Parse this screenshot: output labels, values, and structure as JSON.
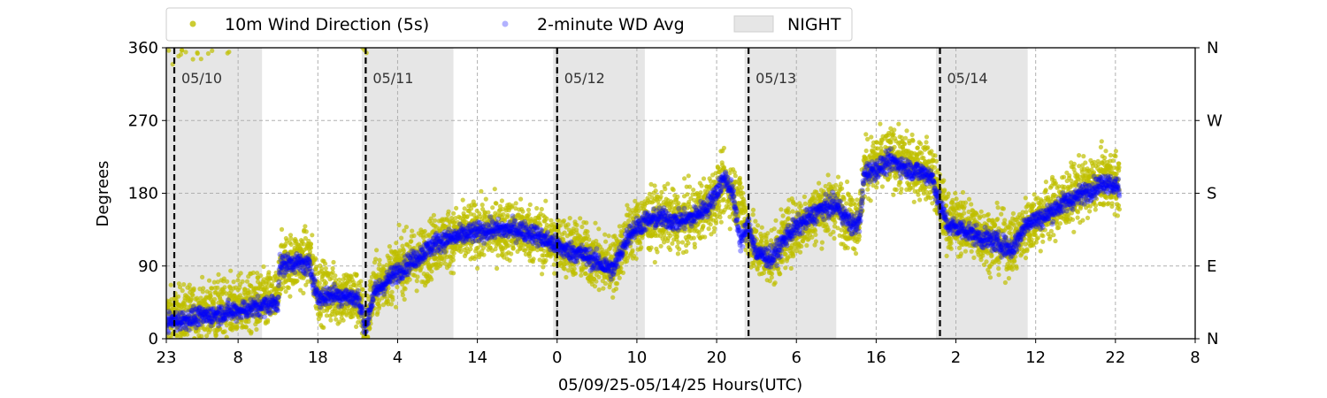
{
  "chart_data": {
    "type": "scatter",
    "xlabel": "05/09/25-05/14/25  Hours(UTC)",
    "ylabel": "Degrees",
    "x_range_hours": [
      0,
      129
    ],
    "ylim": [
      0,
      360
    ],
    "y_ticks": [
      0,
      90,
      180,
      270,
      360
    ],
    "y_tick_labels": [
      "0",
      "90",
      "180",
      "270",
      "360"
    ],
    "right_tick_labels": [
      "N",
      "E",
      "S",
      "W",
      "N"
    ],
    "x_ticks_hours": [
      0,
      9,
      19,
      29,
      39,
      49,
      59,
      69,
      79,
      89,
      99,
      109,
      119,
      129
    ],
    "x_tick_labels": [
      "23",
      "8",
      "18",
      "4",
      "14",
      "0",
      "10",
      "20",
      "6",
      "16",
      "2",
      "12",
      "22",
      "8"
    ],
    "grid": true,
    "legend_position": "top",
    "legend": {
      "wd_label": "10m Wind Direction (5s)",
      "avg_label": "2-minute WD Avg",
      "night_label": "NIGHT"
    },
    "night_spans_hours": [
      [
        0,
        12
      ],
      [
        24.5,
        36
      ],
      [
        48.5,
        60
      ],
      [
        72.5,
        84
      ],
      [
        96.5,
        108
      ]
    ],
    "day_dividers": [
      {
        "hour": 1,
        "label": "05/10"
      },
      {
        "hour": 25,
        "label": "05/11"
      },
      {
        "hour": 49,
        "label": "05/12"
      },
      {
        "hour": 73,
        "label": "05/13"
      },
      {
        "hour": 97,
        "label": "05/14"
      }
    ],
    "series": [
      {
        "name": "10m Wind Direction (5s)",
        "color": "#bfbf00",
        "mean_anchors": [
          [
            0,
            25
          ],
          [
            3,
            30
          ],
          [
            6,
            35
          ],
          [
            9,
            40
          ],
          [
            12,
            45
          ],
          [
            14,
            50
          ],
          [
            14.2,
            90
          ],
          [
            16,
            95
          ],
          [
            18,
            100
          ],
          [
            19,
            60
          ],
          [
            21,
            55
          ],
          [
            24,
            50
          ],
          [
            25,
            15
          ],
          [
            26,
            60
          ],
          [
            28,
            80
          ],
          [
            30,
            95
          ],
          [
            32,
            100
          ],
          [
            34,
            120
          ],
          [
            36,
            125
          ],
          [
            38,
            130
          ],
          [
            41,
            135
          ],
          [
            44,
            135
          ],
          [
            46,
            130
          ],
          [
            48,
            120
          ],
          [
            50,
            115
          ],
          [
            52,
            110
          ],
          [
            54,
            95
          ],
          [
            56,
            90
          ],
          [
            58,
            130
          ],
          [
            60,
            145
          ],
          [
            62,
            150
          ],
          [
            64,
            145
          ],
          [
            66,
            150
          ],
          [
            68,
            165
          ],
          [
            70,
            190
          ],
          [
            72,
            170
          ],
          [
            73,
            130
          ],
          [
            74,
            110
          ],
          [
            76,
            100
          ],
          [
            78,
            130
          ],
          [
            80,
            145
          ],
          [
            82,
            160
          ],
          [
            84,
            165
          ],
          [
            86,
            145
          ],
          [
            87,
            150
          ],
          [
            87.5,
            210
          ],
          [
            89,
            215
          ],
          [
            91,
            225
          ],
          [
            93,
            215
          ],
          [
            95,
            210
          ],
          [
            96,
            205
          ],
          [
            97,
            170
          ],
          [
            98,
            145
          ],
          [
            100,
            140
          ],
          [
            102,
            130
          ],
          [
            104,
            120
          ],
          [
            106,
            115
          ],
          [
            108,
            140
          ],
          [
            110,
            155
          ],
          [
            112,
            165
          ],
          [
            114,
            180
          ],
          [
            116,
            190
          ],
          [
            118,
            200
          ],
          [
            119.5,
            190
          ]
        ],
        "avg_anchors": [
          [
            0,
            20
          ],
          [
            3,
            25
          ],
          [
            6,
            30
          ],
          [
            9,
            35
          ],
          [
            12,
            40
          ],
          [
            14,
            45
          ],
          [
            14.2,
            90
          ],
          [
            16,
            95
          ],
          [
            18,
            90
          ],
          [
            19,
            50
          ],
          [
            21,
            55
          ],
          [
            24,
            50
          ],
          [
            25,
            15
          ],
          [
            26,
            55
          ],
          [
            28,
            75
          ],
          [
            30,
            90
          ],
          [
            32,
            105
          ],
          [
            34,
            120
          ],
          [
            36,
            125
          ],
          [
            38,
            130
          ],
          [
            41,
            135
          ],
          [
            44,
            135
          ],
          [
            46,
            130
          ],
          [
            48,
            120
          ],
          [
            50,
            110
          ],
          [
            52,
            105
          ],
          [
            54,
            95
          ],
          [
            56,
            85
          ],
          [
            58,
            130
          ],
          [
            60,
            145
          ],
          [
            62,
            150
          ],
          [
            64,
            145
          ],
          [
            66,
            150
          ],
          [
            68,
            165
          ],
          [
            70,
            200
          ],
          [
            71,
            180
          ],
          [
            72,
            120
          ],
          [
            73,
            140
          ],
          [
            74,
            105
          ],
          [
            76,
            100
          ],
          [
            78,
            130
          ],
          [
            80,
            145
          ],
          [
            82,
            160
          ],
          [
            84,
            165
          ],
          [
            86,
            140
          ],
          [
            87,
            145
          ],
          [
            87.5,
            205
          ],
          [
            89,
            210
          ],
          [
            91,
            220
          ],
          [
            93,
            210
          ],
          [
            95,
            205
          ],
          [
            96,
            200
          ],
          [
            97,
            165
          ],
          [
            98,
            140
          ],
          [
            100,
            135
          ],
          [
            102,
            125
          ],
          [
            104,
            120
          ],
          [
            106,
            110
          ],
          [
            108,
            145
          ],
          [
            110,
            150
          ],
          [
            112,
            165
          ],
          [
            114,
            175
          ],
          [
            116,
            185
          ],
          [
            118,
            195
          ],
          [
            119.5,
            185
          ]
        ]
      },
      {
        "name": "2-minute WD Avg",
        "color": "#0000ff"
      }
    ]
  }
}
